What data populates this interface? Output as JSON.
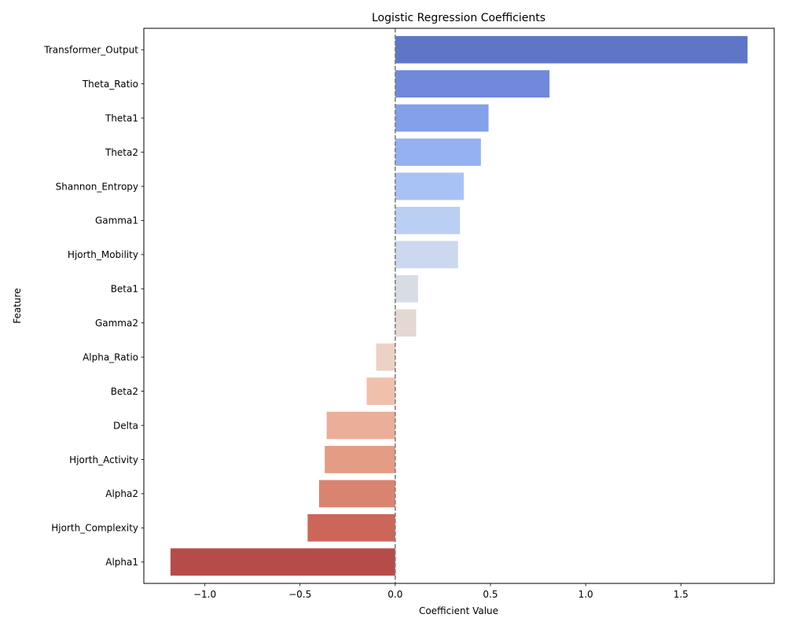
{
  "chart_data": {
    "type": "bar",
    "orientation": "horizontal",
    "title": "Logistic Regression Coefficients",
    "xlabel": "Coefficient Value",
    "ylabel": "Feature",
    "xlim": [
      -1.32,
      1.99
    ],
    "xticks": [
      -1.0,
      -0.5,
      0.0,
      0.5,
      1.0,
      1.5
    ],
    "xtick_labels": [
      "−1.0",
      "−0.5",
      "0.0",
      "0.5",
      "1.0",
      "1.5"
    ],
    "grid": false,
    "reference_line": {
      "x": 0,
      "style": "dashed",
      "color": "#808080"
    },
    "categories": [
      "Transformer_Output",
      "Theta_Ratio",
      "Theta1",
      "Theta2",
      "Shannon_Entropy",
      "Gamma1",
      "Hjorth_Mobility",
      "Beta1",
      "Gamma2",
      "Alpha_Ratio",
      "Beta2",
      "Delta",
      "Hjorth_Activity",
      "Alpha2",
      "Hjorth_Complexity",
      "Alpha1"
    ],
    "values": [
      1.85,
      0.81,
      0.49,
      0.45,
      0.36,
      0.34,
      0.33,
      0.12,
      0.11,
      -0.1,
      -0.15,
      -0.36,
      -0.37,
      -0.4,
      -0.46,
      -1.18
    ],
    "colors": [
      "#5f75c8",
      "#7188dc",
      "#84a0ea",
      "#96b1f2",
      "#a9c2f6",
      "#bbcff4",
      "#cbd8ef",
      "#d7dce5",
      "#e4d8d3",
      "#ecd2c4",
      "#efc1ad",
      "#ebae98",
      "#e49c84",
      "#d98470",
      "#cb6659",
      "#b64c4a"
    ]
  }
}
